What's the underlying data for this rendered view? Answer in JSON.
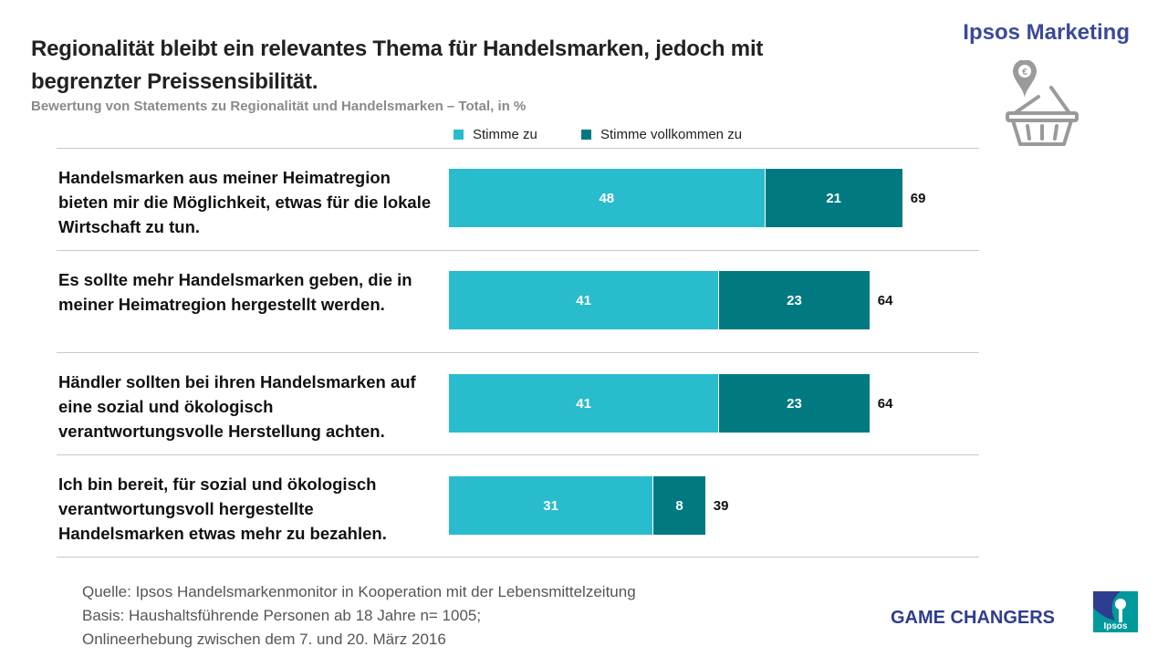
{
  "header": {
    "title": "Regionalität bleibt ein relevantes Thema für Handelsmarken, jedoch mit begrenzter Preissensibilität.",
    "subtitle": "Bewertung von Statements zu Regionalität und Handelsmarken – Total, in %",
    "brand": "Ipsos Marketing"
  },
  "colors": {
    "stimme_zu": "#28bccd",
    "stimme_vollkommen_zu": "#007a80",
    "brand": "#3a4a9a"
  },
  "chart_data": {
    "type": "bar",
    "orientation": "horizontal",
    "stacked": true,
    "title": "Bewertung von Statements zu Regionalität und Handelsmarken – Total, in %",
    "categories": [
      "Handelsmarken aus meiner Heimatregion bieten mir die Möglichkeit, etwas für die lokale Wirtschaft zu tun.",
      "Es sollte mehr Handelsmarken geben, die in meiner Heimatregion hergestellt werden.",
      "Händler sollten bei ihren Handelsmarken auf eine sozial und ökologisch verantwortungsvolle Herstellung achten.",
      "Ich bin bereit, für sozial und ökologisch verantwortungsvoll hergestellte Handelsmarken etwas mehr zu bezahlen."
    ],
    "series": [
      {
        "name": "Stimme zu",
        "values": [
          48,
          41,
          41,
          31
        ]
      },
      {
        "name": "Stimme vollkommen zu",
        "values": [
          21,
          23,
          23,
          8
        ]
      }
    ],
    "totals": [
      69,
      64,
      64,
      39
    ],
    "legend_position": "top",
    "xlim": [
      0,
      80
    ]
  },
  "footer": {
    "source_lines": [
      "Quelle: Ipsos Handelsmarkenmonitor  in Kooperation mit der Lebensmittelzeitung",
      "Basis: Haushaltsführende  Personen  ab 18 Jahre n= 1005;",
      "Onlineerhebung  zwischen dem 7. und 20. März 2016"
    ],
    "tagline": "GAME CHANGERS",
    "logo_text": "Ipsos"
  }
}
